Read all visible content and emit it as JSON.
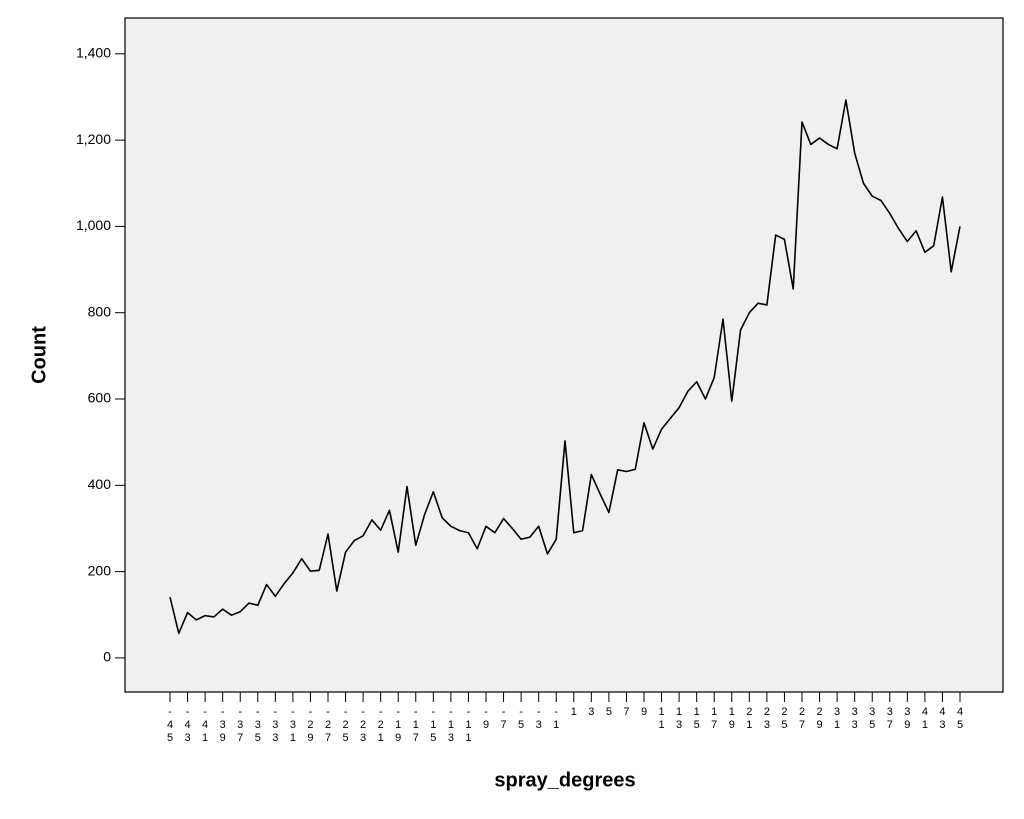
{
  "chart_data": {
    "type": "line",
    "x_label": "spray_degrees",
    "y_label": "Count",
    "categories": [
      "-45",
      null,
      "-43",
      null,
      "-41",
      null,
      "-39",
      null,
      "-37",
      null,
      "-35",
      null,
      "-33",
      null,
      "-31",
      null,
      "-29",
      null,
      "-27",
      null,
      "-25",
      null,
      "-23",
      null,
      "-21",
      null,
      "-19",
      null,
      "-17",
      null,
      "-15",
      null,
      "-13",
      null,
      "-11",
      null,
      "-9",
      null,
      "-7",
      null,
      "-5",
      null,
      "-3",
      null,
      "-1",
      null,
      "1",
      null,
      "3",
      null,
      "5",
      null,
      "7",
      null,
      "9",
      null,
      "11",
      null,
      "13",
      null,
      "15",
      null,
      "17",
      null,
      "19",
      null,
      "21",
      null,
      "23",
      null,
      "25",
      null,
      "27",
      null,
      "29",
      null,
      "31",
      null,
      "33",
      null,
      "35",
      null,
      "37",
      null,
      "39",
      null,
      "41",
      null,
      "43",
      null,
      "45"
    ],
    "values": [
      141,
      57,
      105,
      88,
      98,
      95,
      113,
      99,
      107,
      127,
      122,
      170,
      143,
      172,
      197,
      230,
      201,
      203,
      287,
      155,
      245,
      272,
      283,
      320,
      296,
      342,
      245,
      397,
      261,
      332,
      385,
      325,
      305,
      295,
      290,
      253,
      305,
      290,
      323,
      300,
      275,
      280,
      305,
      241,
      275,
      503,
      290,
      295,
      425,
      380,
      337,
      436,
      432,
      437,
      545,
      484,
      530,
      555,
      580,
      618,
      640,
      600,
      650,
      785,
      595,
      760,
      800,
      822,
      818,
      980,
      970,
      855,
      1242,
      1190,
      1205,
      1190,
      1180,
      1293,
      1170,
      1100,
      1070,
      1060,
      1030,
      995,
      965,
      990,
      940,
      955,
      1068,
      895,
      1000
    ],
    "color": "#000000",
    "ylim": [
      -79,
      1483
    ],
    "yticks": [
      0,
      200,
      400,
      600,
      800,
      {
        "value": 1000,
        "label": "1,000"
      },
      {
        "value": 1200,
        "label": "1,200"
      },
      {
        "value": 1400,
        "label": "1,400"
      }
    ],
    "grid": false
  }
}
